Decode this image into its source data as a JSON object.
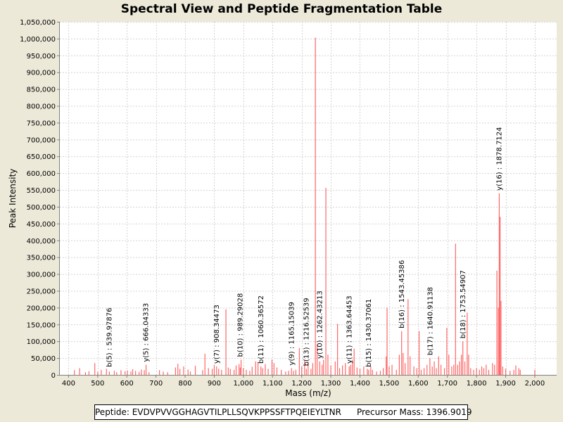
{
  "chart_data": {
    "type": "bar",
    "title": "Spectral View and Peptide Fragmentation Table",
    "xlabel": "Mass (m/z)",
    "ylabel": "Peak Intensity",
    "xlim": [
      370,
      2075
    ],
    "ylim": [
      0,
      1050000
    ],
    "x_ticks": [
      400,
      500,
      600,
      700,
      800,
      900,
      1000,
      1100,
      1200,
      1300,
      1400,
      1500,
      1600,
      1700,
      1800,
      1900,
      2000
    ],
    "x_tick_labels": [
      "400",
      "500",
      "600",
      "700",
      "800",
      "900",
      "1,000",
      "1,100",
      "1,200",
      "1,300",
      "1,400",
      "1,500",
      "1,600",
      "1,700",
      "1,800",
      "1,900",
      "2,000"
    ],
    "y_ticks": [
      0,
      50000,
      100000,
      150000,
      200000,
      250000,
      300000,
      350000,
      400000,
      450000,
      500000,
      550000,
      600000,
      650000,
      700000,
      750000,
      800000,
      850000,
      900000,
      950000,
      1000000,
      1050000
    ],
    "y_tick_labels": [
      "0",
      "50,000",
      "100,000",
      "150,000",
      "200,000",
      "250,000",
      "300,000",
      "350,000",
      "400,000",
      "450,000",
      "500,000",
      "550,000",
      "600,000",
      "650,000",
      "700,000",
      "750,000",
      "800,000",
      "850,000",
      "900,000",
      "950,000",
      "1,000,000",
      "1,050,000"
    ],
    "grid": true,
    "bar_color": "#ff6666",
    "peaks": [
      [
        420,
        14000
      ],
      [
        438,
        20000
      ],
      [
        458,
        8000
      ],
      [
        470,
        11000
      ],
      [
        490,
        35000
      ],
      [
        500,
        9000
      ],
      [
        512,
        15000
      ],
      [
        530,
        18000
      ],
      [
        540,
        10000
      ],
      [
        557,
        12000
      ],
      [
        565,
        8000
      ],
      [
        580,
        14000
      ],
      [
        594,
        11000
      ],
      [
        602,
        13000
      ],
      [
        614,
        10000
      ],
      [
        620,
        17000
      ],
      [
        630,
        12000
      ],
      [
        642,
        9000
      ],
      [
        650,
        16000
      ],
      [
        660,
        14000
      ],
      [
        666,
        30000
      ],
      [
        676,
        8000
      ],
      [
        712,
        14000
      ],
      [
        725,
        10000
      ],
      [
        740,
        8000
      ],
      [
        767,
        22000
      ],
      [
        775,
        33000
      ],
      [
        782,
        18000
      ],
      [
        795,
        25000
      ],
      [
        810,
        16000
      ],
      [
        818,
        10000
      ],
      [
        835,
        27000
      ],
      [
        860,
        14000
      ],
      [
        868,
        63000
      ],
      [
        880,
        20000
      ],
      [
        893,
        18000
      ],
      [
        900,
        30000
      ],
      [
        908,
        25000
      ],
      [
        915,
        18000
      ],
      [
        925,
        15000
      ],
      [
        940,
        195000
      ],
      [
        948,
        22000
      ],
      [
        955,
        18000
      ],
      [
        968,
        15000
      ],
      [
        975,
        28000
      ],
      [
        985,
        32000
      ],
      [
        989,
        22000
      ],
      [
        992,
        45000
      ],
      [
        1000,
        20000
      ],
      [
        1010,
        15000
      ],
      [
        1022,
        12000
      ],
      [
        1030,
        24000
      ],
      [
        1042,
        40000
      ],
      [
        1050,
        38000
      ],
      [
        1060,
        25000
      ],
      [
        1066,
        20000
      ],
      [
        1075,
        32000
      ],
      [
        1085,
        18000
      ],
      [
        1098,
        45000
      ],
      [
        1105,
        35000
      ],
      [
        1115,
        22000
      ],
      [
        1130,
        15000
      ],
      [
        1145,
        10000
      ],
      [
        1155,
        12000
      ],
      [
        1165,
        20000
      ],
      [
        1172,
        12000
      ],
      [
        1180,
        15000
      ],
      [
        1192,
        80000
      ],
      [
        1200,
        25000
      ],
      [
        1210,
        45000
      ],
      [
        1216,
        18000
      ],
      [
        1222,
        40000
      ],
      [
        1232,
        18000
      ],
      [
        1238,
        35000
      ],
      [
        1247,
        1003000
      ],
      [
        1253,
        90000
      ],
      [
        1262,
        40000
      ],
      [
        1270,
        30000
      ],
      [
        1275,
        45000
      ],
      [
        1283,
        556000
      ],
      [
        1290,
        60000
      ],
      [
        1300,
        28000
      ],
      [
        1315,
        40000
      ],
      [
        1323,
        152000
      ],
      [
        1330,
        20000
      ],
      [
        1340,
        28000
      ],
      [
        1350,
        35000
      ],
      [
        1363,
        25000
      ],
      [
        1368,
        30000
      ],
      [
        1374,
        45000
      ],
      [
        1380,
        78000
      ],
      [
        1390,
        22000
      ],
      [
        1400,
        18000
      ],
      [
        1413,
        25000
      ],
      [
        1425,
        18000
      ],
      [
        1430,
        15000
      ],
      [
        1437,
        25000
      ],
      [
        1443,
        15000
      ],
      [
        1457,
        10000
      ],
      [
        1470,
        12000
      ],
      [
        1480,
        20000
      ],
      [
        1490,
        55000
      ],
      [
        1493,
        200000
      ],
      [
        1500,
        25000
      ],
      [
        1510,
        30000
      ],
      [
        1525,
        15000
      ],
      [
        1535,
        60000
      ],
      [
        1543,
        130000
      ],
      [
        1548,
        65000
      ],
      [
        1555,
        35000
      ],
      [
        1565,
        225000
      ],
      [
        1572,
        55000
      ],
      [
        1585,
        25000
      ],
      [
        1595,
        20000
      ],
      [
        1603,
        130000
      ],
      [
        1610,
        15000
      ],
      [
        1620,
        20000
      ],
      [
        1630,
        30000
      ],
      [
        1640,
        50000
      ],
      [
        1648,
        25000
      ],
      [
        1655,
        40000
      ],
      [
        1662,
        20000
      ],
      [
        1670,
        55000
      ],
      [
        1678,
        30000
      ],
      [
        1690,
        20000
      ],
      [
        1698,
        140000
      ],
      [
        1705,
        60000
      ],
      [
        1715,
        25000
      ],
      [
        1722,
        30000
      ],
      [
        1728,
        390000
      ],
      [
        1735,
        30000
      ],
      [
        1742,
        40000
      ],
      [
        1748,
        60000
      ],
      [
        1753,
        100000
      ],
      [
        1760,
        40000
      ],
      [
        1768,
        185000
      ],
      [
        1773,
        60000
      ],
      [
        1780,
        20000
      ],
      [
        1790,
        15000
      ],
      [
        1800,
        20000
      ],
      [
        1810,
        15000
      ],
      [
        1818,
        25000
      ],
      [
        1825,
        20000
      ],
      [
        1833,
        30000
      ],
      [
        1842,
        15000
      ],
      [
        1855,
        35000
      ],
      [
        1862,
        30000
      ],
      [
        1870,
        310000
      ],
      [
        1875,
        200000
      ],
      [
        1878,
        540000
      ],
      [
        1881,
        470000
      ],
      [
        1884,
        220000
      ],
      [
        1890,
        25000
      ],
      [
        1900,
        18000
      ],
      [
        1915,
        12000
      ],
      [
        1928,
        15000
      ],
      [
        1935,
        28000
      ],
      [
        1945,
        20000
      ],
      [
        1950,
        15000
      ],
      [
        2000,
        15000
      ]
    ],
    "annotations": [
      {
        "x": 539.97876,
        "y": 15000,
        "label": "b(5) : 539.97876"
      },
      {
        "x": 666.04333,
        "y": 30000,
        "label": "y(5) : 666.04333"
      },
      {
        "x": 908.34473,
        "y": 25000,
        "label": "y(7) : 908.34473"
      },
      {
        "x": 989.29028,
        "y": 45000,
        "label": "b(10) : 989.29028"
      },
      {
        "x": 1060.36572,
        "y": 25000,
        "label": "b(11) : 1060.36572"
      },
      {
        "x": 1165.15039,
        "y": 20000,
        "label": "y(9) : 1165.15039"
      },
      {
        "x": 1216.52539,
        "y": 18000,
        "label": "b(13) : 1216.52539"
      },
      {
        "x": 1262.43213,
        "y": 40000,
        "label": "y(10) : 1262.43213"
      },
      {
        "x": 1363.64453,
        "y": 25000,
        "label": "y(11) : 1363.64453"
      },
      {
        "x": 1430.37061,
        "y": 15000,
        "label": "b(15) : 1430.37061"
      },
      {
        "x": 1543.45386,
        "y": 130000,
        "label": "b(16) : 1543.45386"
      },
      {
        "x": 1640.91138,
        "y": 50000,
        "label": "b(17) : 1640.91138"
      },
      {
        "x": 1753.54907,
        "y": 100000,
        "label": "b(18) : 1753.54907"
      },
      {
        "x": 1878.7124,
        "y": 540000,
        "label": "y(16) : 1878.7124"
      }
    ]
  },
  "footer": {
    "peptide_label": "Peptide: EVDVPVVGGHAGVTILPLLSQVKPPSSFTPQEIEYLTNR",
    "precursor_label": "Precursor Mass: 1396.9019"
  }
}
